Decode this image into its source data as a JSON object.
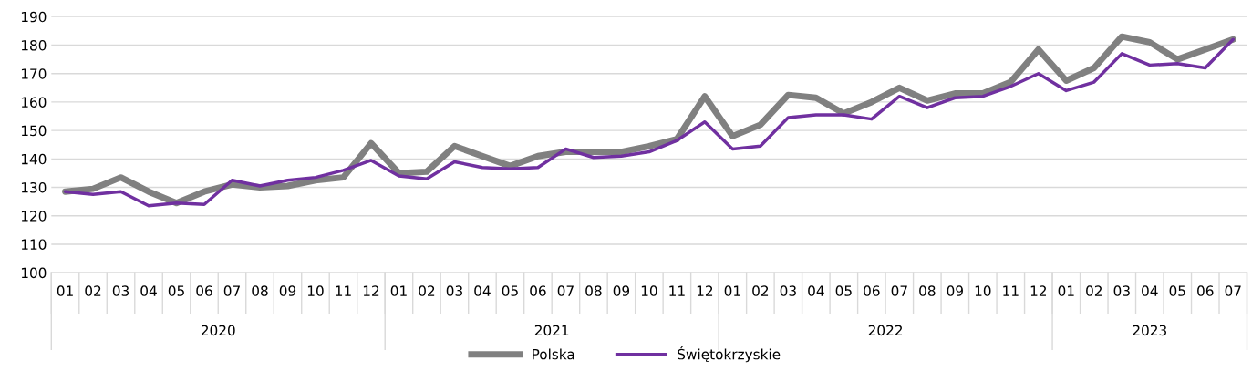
{
  "chart_data": {
    "type": "line",
    "categories": [
      "01",
      "02",
      "03",
      "04",
      "05",
      "06",
      "07",
      "08",
      "09",
      "10",
      "11",
      "12",
      "01",
      "02",
      "03",
      "04",
      "05",
      "06",
      "07",
      "08",
      "09",
      "10",
      "11",
      "12",
      "01",
      "02",
      "03",
      "04",
      "05",
      "06",
      "07",
      "08",
      "09",
      "10",
      "11",
      "12",
      "01",
      "02",
      "03",
      "04",
      "05",
      "06",
      "07"
    ],
    "series": [
      {
        "name": "Polska",
        "color": "#808080",
        "values": [
          128.5,
          129.5,
          133.5,
          128.5,
          124.5,
          128.5,
          131,
          130,
          130.5,
          132.5,
          133.5,
          145.5,
          135,
          135.5,
          144.5,
          141,
          137.5,
          141,
          142.5,
          142.5,
          142.5,
          144.5,
          147,
          162,
          148,
          152,
          162.5,
          161.5,
          156,
          160,
          165,
          160.5,
          163,
          163,
          167,
          178.5,
          167.5,
          172,
          183,
          181,
          175,
          178.5,
          182
        ]
      },
      {
        "name": "Świętokrzyskie",
        "color": "#7030a0",
        "values": [
          128.5,
          127.5,
          128.5,
          123.5,
          124.5,
          124,
          132.5,
          130.5,
          132.5,
          133.5,
          136,
          139.5,
          134,
          133,
          139,
          137,
          136.5,
          137,
          143.5,
          140.5,
          141,
          142.5,
          146.5,
          153,
          143.5,
          144.5,
          154.5,
          155.5,
          155.5,
          154,
          162,
          158,
          161.5,
          162,
          165.5,
          170,
          164,
          167,
          177,
          173,
          173.5,
          172,
          182
        ]
      }
    ],
    "annotations": [
      "2020",
      "2021",
      "2022",
      "2023"
    ],
    "ylim": [
      100,
      190
    ],
    "yticks": [
      100,
      110,
      120,
      130,
      140,
      150,
      160,
      170,
      180,
      190
    ],
    "grid": "y",
    "legend": "bottom",
    "marker": "none",
    "line_style": "solid"
  }
}
